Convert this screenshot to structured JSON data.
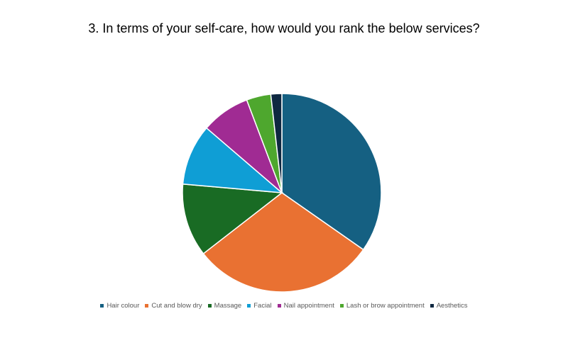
{
  "chart_data": {
    "type": "pie",
    "title": "3. In terms of your self-care, how would you rank the below services?",
    "categories": [
      "Hair colour",
      "Cut and blow dry",
      "Massage",
      "Facial",
      "Nail appointment",
      "Lash or brow appointment",
      "Aesthetics"
    ],
    "values": [
      35,
      30,
      12,
      10,
      8,
      4,
      1.8
    ],
    "colors": [
      "#156082",
      "#E97132",
      "#196B24",
      "#0F9ED5",
      "#A02B93",
      "#4EA72E",
      "#0E2841"
    ],
    "legend_position": "bottom"
  }
}
